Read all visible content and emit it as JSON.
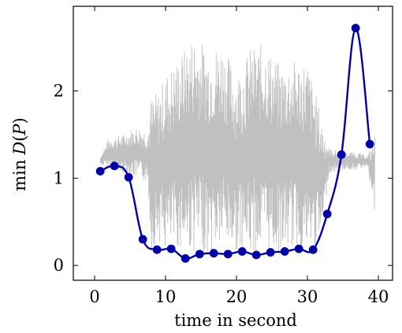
{
  "chart_data": {
    "type": "line",
    "title": "",
    "xlabel": "time in second",
    "ylabel": "min D(P)",
    "ylabel_parts": {
      "prefix": "min",
      "fn": "D",
      "arg": "P"
    },
    "xlim": [
      -3,
      42
    ],
    "ylim": [
      -0.17,
      2.97
    ],
    "xticks": [
      0,
      10,
      20,
      30,
      40
    ],
    "yticks": [
      0,
      1,
      2
    ],
    "xtick_labels": [
      "0",
      "10",
      "20",
      "30",
      "40"
    ],
    "ytick_labels": [
      "0",
      "1",
      "2"
    ],
    "grid": false,
    "legend": "none",
    "series": [
      {
        "role": "main",
        "color": "#0000a8",
        "marker": "circle",
        "x": [
          0.8,
          2.8,
          4.8,
          6.8,
          8.8,
          10.8,
          12.8,
          14.8,
          16.8,
          18.8,
          20.8,
          22.8,
          24.8,
          26.8,
          28.8,
          30.8,
          32.8,
          34.8,
          36.8,
          38.8
        ],
        "y": [
          1.08,
          1.14,
          1.01,
          0.3,
          0.18,
          0.19,
          0.08,
          0.13,
          0.14,
          0.13,
          0.16,
          0.12,
          0.15,
          0.16,
          0.19,
          0.18,
          0.59,
          1.27,
          2.72,
          1.39
        ]
      },
      {
        "role": "background-signal",
        "color": "#c0c0c0",
        "envelope": {
          "x": [
            0.8,
            2,
            4,
            6,
            7.5,
            8,
            9,
            10,
            12,
            14,
            16,
            18,
            20,
            22,
            24,
            26,
            28,
            30,
            32,
            33,
            35,
            37,
            38.5,
            39.5
          ],
          "lo": [
            1.15,
            1.12,
            1.05,
            1.0,
            0.95,
            0.15,
            0.3,
            0.15,
            0.2,
            0.15,
            0.1,
            0.2,
            0.15,
            0.1,
            0.15,
            0.15,
            0.2,
            0.1,
            0.3,
            1.05,
            1.1,
            1.1,
            1.15,
            0.55
          ],
          "hi": [
            1.25,
            1.45,
            1.5,
            1.6,
            1.55,
            1.95,
            2.0,
            2.2,
            2.4,
            2.65,
            2.5,
            2.55,
            2.2,
            2.5,
            2.55,
            2.3,
            2.35,
            2.35,
            1.7,
            1.35,
            1.3,
            1.3,
            1.25,
            1.5
          ]
        }
      }
    ]
  }
}
